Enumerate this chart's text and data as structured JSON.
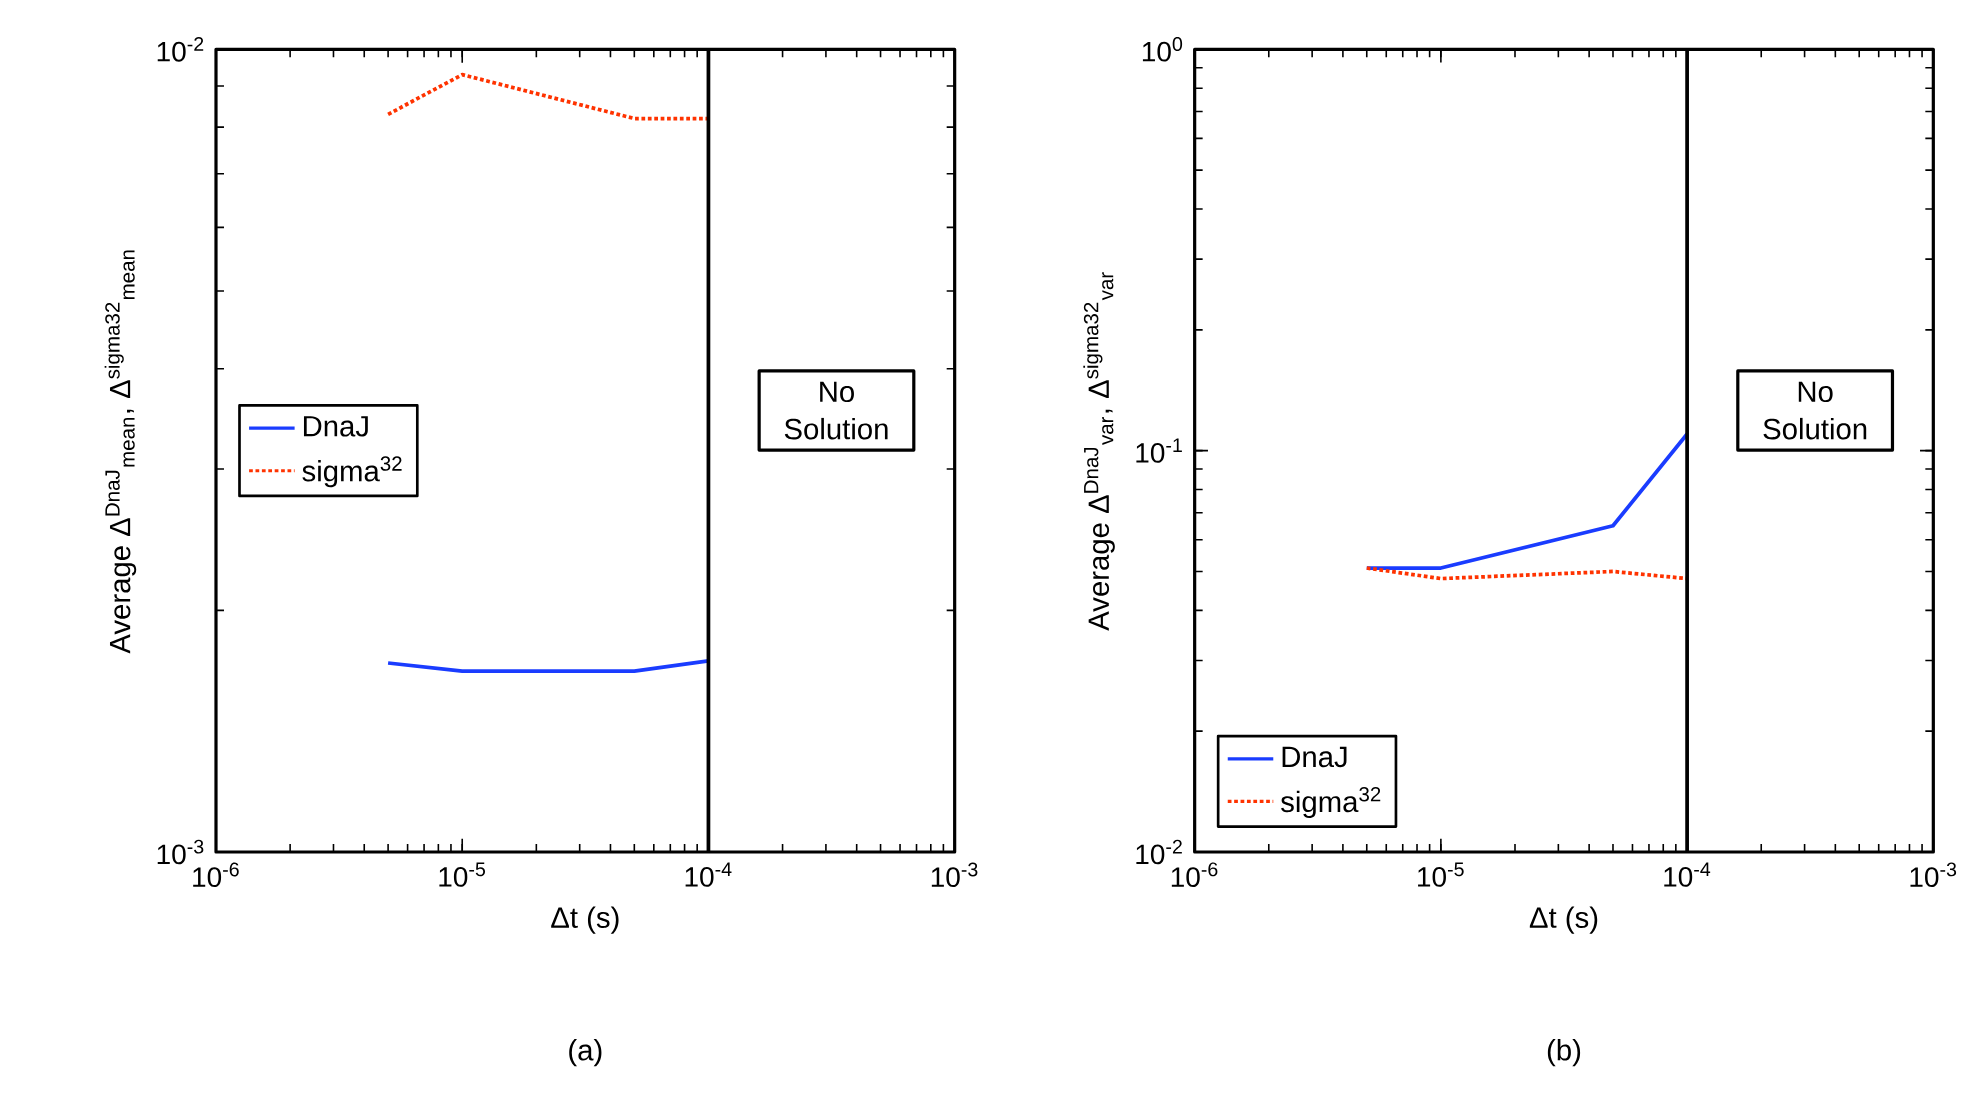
{
  "chart_data": [
    {
      "type": "line",
      "xlabel": "Δt (s)",
      "ylabel": "Average Δ$^{DnaJ}$$_{mean}$, Δ$^{sigma32}$$_{mean}$",
      "log": "xy",
      "legend": "left",
      "grid": false,
      "x": [
        5e-06,
        1e-05,
        5e-05,
        0.0001
      ],
      "series": [
        {
          "name": "DnaJ",
          "color": "#1a3cff",
          "line_style": "solid",
          "values": [
            0.00172,
            0.00168,
            0.00168,
            0.00173
          ]
        },
        {
          "name": "sigma$^{32}$",
          "color": "#ff3300",
          "line_style": "dotted",
          "values": [
            0.0083,
            0.0093,
            0.0082,
            0.0082
          ]
        }
      ],
      "xlim": [
        1e-06,
        0.001
      ],
      "xticks": [
        {
          "value": 1e-06,
          "label": "10$^{-6}$"
        },
        {
          "value": 1e-05,
          "label": "10$^{-5}$"
        },
        {
          "value": 0.0001,
          "label": "10$^{-4}$"
        },
        {
          "value": 0.001,
          "label": "10$^{-3}$"
        }
      ],
      "ylim": [
        0.001,
        0.01
      ],
      "yticks": [
        {
          "value": 0.001,
          "label": "10$^{-3}$"
        },
        {
          "value": 0.01,
          "label": "10$^{-2}$"
        }
      ],
      "ref_lines": [
        {
          "axis": "x",
          "value": 0.0001,
          "color": "#000000"
        }
      ],
      "annotations": [
        "No Solution",
        "(a)"
      ]
    },
    {
      "type": "line",
      "xlabel": "Δt (s)",
      "ylabel": "Average Δ$^{DnaJ}$$_{var}$, Δ$^{sigma32}$$_{var}$",
      "log": "xy",
      "legend": "bottom left",
      "grid": false,
      "x": [
        5e-06,
        1e-05,
        5e-05,
        0.0001
      ],
      "series": [
        {
          "name": "DnaJ",
          "color": "#1a3cff",
          "line_style": "solid",
          "values": [
            0.051,
            0.051,
            0.065,
            0.11
          ]
        },
        {
          "name": "sigma$^{32}$",
          "color": "#ff3300",
          "line_style": "dotted",
          "values": [
            0.051,
            0.048,
            0.05,
            0.048
          ]
        }
      ],
      "xlim": [
        1e-06,
        0.001
      ],
      "xticks": [
        {
          "value": 1e-06,
          "label": "10$^{-6}$"
        },
        {
          "value": 1e-05,
          "label": "10$^{-5}$"
        },
        {
          "value": 0.0001,
          "label": "10$^{-4}$"
        },
        {
          "value": 0.001,
          "label": "10$^{-3}$"
        }
      ],
      "ylim": [
        0.01,
        1
      ],
      "yticks": [
        {
          "value": 0.01,
          "label": "10$^{-2}$"
        },
        {
          "value": 0.1,
          "label": "10$^{-1}$"
        },
        {
          "value": 1,
          "label": "10$^{0}$"
        }
      ],
      "ref_lines": [
        {
          "axis": "x",
          "value": 0.0001,
          "color": "#000000"
        }
      ],
      "annotations": [
        "No Solution",
        "(b)"
      ]
    }
  ]
}
